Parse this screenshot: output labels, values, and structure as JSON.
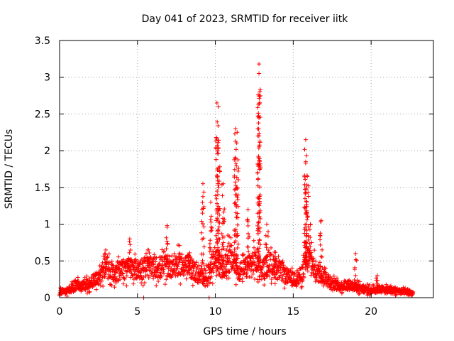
{
  "chart_data": {
    "type": "scatter",
    "title": "Day 041 of 2023, SRMTID for receiver iitk",
    "xlabel": "GPS time / hours",
    "ylabel": "SRMTID / TECUs",
    "xlim": [
      0,
      24
    ],
    "ylim": [
      0,
      3.5
    ],
    "xticks": [
      0,
      5,
      10,
      15,
      20
    ],
    "yticks": [
      0,
      0.5,
      1,
      1.5,
      2,
      2.5,
      3,
      3.5
    ],
    "xtick_labels": [
      "0",
      "5",
      "10",
      "15",
      "20"
    ],
    "ytick_labels": [
      "0",
      "0.5",
      "1",
      "1.5",
      "2",
      "2.5",
      "3",
      "3.5"
    ],
    "grid": true,
    "marker": "plus",
    "marker_color": "#ff0000",
    "series": [
      {
        "name": "SRMTID",
        "baseline": [
          [
            0.0,
            0.08
          ],
          [
            0.5,
            0.09
          ],
          [
            1.0,
            0.17
          ],
          [
            1.5,
            0.16
          ],
          [
            2.0,
            0.2
          ],
          [
            2.5,
            0.3
          ],
          [
            3.0,
            0.42
          ],
          [
            3.5,
            0.35
          ],
          [
            4.0,
            0.38
          ],
          [
            4.5,
            0.4
          ],
          [
            5.0,
            0.38
          ],
          [
            5.5,
            0.42
          ],
          [
            6.0,
            0.4
          ],
          [
            6.5,
            0.42
          ],
          [
            7.0,
            0.42
          ],
          [
            7.5,
            0.45
          ],
          [
            8.0,
            0.45
          ],
          [
            8.5,
            0.4
          ],
          [
            9.0,
            0.28
          ],
          [
            9.5,
            0.3
          ],
          [
            10.0,
            0.55
          ],
          [
            10.5,
            0.38
          ],
          [
            11.0,
            0.55
          ],
          [
            11.5,
            0.35
          ],
          [
            12.0,
            0.4
          ],
          [
            12.5,
            0.5
          ],
          [
            13.0,
            0.38
          ],
          [
            13.5,
            0.45
          ],
          [
            14.0,
            0.4
          ],
          [
            14.5,
            0.3
          ],
          [
            15.0,
            0.25
          ],
          [
            15.5,
            0.3
          ],
          [
            16.0,
            0.55
          ],
          [
            16.5,
            0.35
          ],
          [
            17.0,
            0.3
          ],
          [
            17.5,
            0.2
          ],
          [
            18.0,
            0.15
          ],
          [
            18.5,
            0.18
          ],
          [
            19.0,
            0.15
          ],
          [
            19.5,
            0.12
          ],
          [
            20.0,
            0.1
          ],
          [
            20.5,
            0.12
          ],
          [
            21.0,
            0.1
          ],
          [
            21.5,
            0.1
          ],
          [
            22.0,
            0.08
          ],
          [
            22.7,
            0.06
          ]
        ],
        "spikes": [
          [
            2.9,
            0.6
          ],
          [
            4.5,
            0.8
          ],
          [
            5.7,
            0.65
          ],
          [
            6.9,
            0.98
          ],
          [
            8.3,
            0.58
          ],
          [
            9.2,
            1.55
          ],
          [
            9.7,
            1.3
          ],
          [
            10.1,
            2.65
          ],
          [
            10.2,
            2.6
          ],
          [
            10.5,
            1.55
          ],
          [
            10.8,
            0.85
          ],
          [
            11.3,
            2.3
          ],
          [
            11.4,
            2.25
          ],
          [
            12.1,
            1.2
          ],
          [
            12.8,
            3.18
          ],
          [
            12.8,
            3.05
          ],
          [
            13.3,
            1.0
          ],
          [
            13.8,
            0.62
          ],
          [
            15.8,
            2.15
          ],
          [
            15.8,
            1.85
          ],
          [
            15.9,
            1.65
          ],
          [
            16.1,
            1.0
          ],
          [
            16.8,
            1.05
          ],
          [
            19.0,
            0.6
          ],
          [
            20.4,
            0.3
          ]
        ],
        "outliers": [
          [
            5.4,
            0.0
          ],
          [
            9.6,
            0.0
          ]
        ]
      }
    ]
  }
}
